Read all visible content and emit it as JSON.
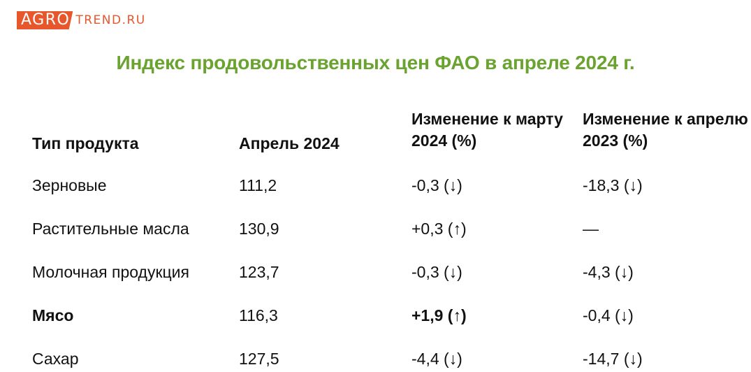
{
  "logo": {
    "agro": "AGRO",
    "trend": "TREND.RU",
    "accent_color": "#e8572c"
  },
  "title": "Индекс продовольственных цен ФАО в апреле 2024 г.",
  "title_color": "#6aa32f",
  "table": {
    "headers": [
      "Тип продукта",
      "Апрель 2024",
      "Изменение к марту 2024 (%)",
      "Изменение к апрелю 2023 (%)"
    ],
    "rows": [
      [
        "Зерновые",
        "111,2",
        "-0,3 (↓)",
        "-18,3 (↓)"
      ],
      [
        "Растительные масла",
        "130,9",
        "+0,3 (↑)",
        "—"
      ],
      [
        "Молочная продукция",
        "123,7",
        "-0,3 (↓)",
        "-4,3 (↓)"
      ],
      [
        "Мясо",
        "116,3",
        "+1,9 (↑)",
        "-0,4 (↓)"
      ],
      [
        "Сахар",
        "127,5",
        "-4,4 (↓)",
        "-14,7 (↓)"
      ]
    ]
  }
}
